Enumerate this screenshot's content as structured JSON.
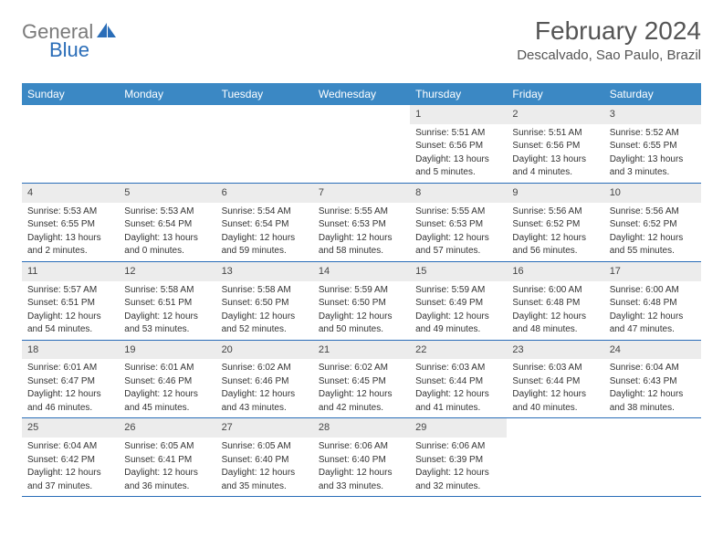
{
  "logo": {
    "part1": "General",
    "part2": "Blue"
  },
  "title": "February 2024",
  "location": "Descalvado, Sao Paulo, Brazil",
  "colors": {
    "header_bg": "#3b88c4",
    "rule": "#2a6db8",
    "daynum_bg": "#ececec",
    "text": "#333333",
    "logo_gray": "#7a7a7a",
    "logo_blue": "#2a6db8"
  },
  "typography": {
    "title_fontsize": 28,
    "location_fontsize": 15,
    "dayheader_fontsize": 12,
    "daynum_fontsize": 11,
    "cell_fontsize": 10
  },
  "day_headers": [
    "Sunday",
    "Monday",
    "Tuesday",
    "Wednesday",
    "Thursday",
    "Friday",
    "Saturday"
  ],
  "weeks": [
    [
      null,
      null,
      null,
      null,
      {
        "n": "1",
        "sunrise": "Sunrise: 5:51 AM",
        "sunset": "Sunset: 6:56 PM",
        "day1": "Daylight: 13 hours",
        "day2": "and 5 minutes."
      },
      {
        "n": "2",
        "sunrise": "Sunrise: 5:51 AM",
        "sunset": "Sunset: 6:56 PM",
        "day1": "Daylight: 13 hours",
        "day2": "and 4 minutes."
      },
      {
        "n": "3",
        "sunrise": "Sunrise: 5:52 AM",
        "sunset": "Sunset: 6:55 PM",
        "day1": "Daylight: 13 hours",
        "day2": "and 3 minutes."
      }
    ],
    [
      {
        "n": "4",
        "sunrise": "Sunrise: 5:53 AM",
        "sunset": "Sunset: 6:55 PM",
        "day1": "Daylight: 13 hours",
        "day2": "and 2 minutes."
      },
      {
        "n": "5",
        "sunrise": "Sunrise: 5:53 AM",
        "sunset": "Sunset: 6:54 PM",
        "day1": "Daylight: 13 hours",
        "day2": "and 0 minutes."
      },
      {
        "n": "6",
        "sunrise": "Sunrise: 5:54 AM",
        "sunset": "Sunset: 6:54 PM",
        "day1": "Daylight: 12 hours",
        "day2": "and 59 minutes."
      },
      {
        "n": "7",
        "sunrise": "Sunrise: 5:55 AM",
        "sunset": "Sunset: 6:53 PM",
        "day1": "Daylight: 12 hours",
        "day2": "and 58 minutes."
      },
      {
        "n": "8",
        "sunrise": "Sunrise: 5:55 AM",
        "sunset": "Sunset: 6:53 PM",
        "day1": "Daylight: 12 hours",
        "day2": "and 57 minutes."
      },
      {
        "n": "9",
        "sunrise": "Sunrise: 5:56 AM",
        "sunset": "Sunset: 6:52 PM",
        "day1": "Daylight: 12 hours",
        "day2": "and 56 minutes."
      },
      {
        "n": "10",
        "sunrise": "Sunrise: 5:56 AM",
        "sunset": "Sunset: 6:52 PM",
        "day1": "Daylight: 12 hours",
        "day2": "and 55 minutes."
      }
    ],
    [
      {
        "n": "11",
        "sunrise": "Sunrise: 5:57 AM",
        "sunset": "Sunset: 6:51 PM",
        "day1": "Daylight: 12 hours",
        "day2": "and 54 minutes."
      },
      {
        "n": "12",
        "sunrise": "Sunrise: 5:58 AM",
        "sunset": "Sunset: 6:51 PM",
        "day1": "Daylight: 12 hours",
        "day2": "and 53 minutes."
      },
      {
        "n": "13",
        "sunrise": "Sunrise: 5:58 AM",
        "sunset": "Sunset: 6:50 PM",
        "day1": "Daylight: 12 hours",
        "day2": "and 52 minutes."
      },
      {
        "n": "14",
        "sunrise": "Sunrise: 5:59 AM",
        "sunset": "Sunset: 6:50 PM",
        "day1": "Daylight: 12 hours",
        "day2": "and 50 minutes."
      },
      {
        "n": "15",
        "sunrise": "Sunrise: 5:59 AM",
        "sunset": "Sunset: 6:49 PM",
        "day1": "Daylight: 12 hours",
        "day2": "and 49 minutes."
      },
      {
        "n": "16",
        "sunrise": "Sunrise: 6:00 AM",
        "sunset": "Sunset: 6:48 PM",
        "day1": "Daylight: 12 hours",
        "day2": "and 48 minutes."
      },
      {
        "n": "17",
        "sunrise": "Sunrise: 6:00 AM",
        "sunset": "Sunset: 6:48 PM",
        "day1": "Daylight: 12 hours",
        "day2": "and 47 minutes."
      }
    ],
    [
      {
        "n": "18",
        "sunrise": "Sunrise: 6:01 AM",
        "sunset": "Sunset: 6:47 PM",
        "day1": "Daylight: 12 hours",
        "day2": "and 46 minutes."
      },
      {
        "n": "19",
        "sunrise": "Sunrise: 6:01 AM",
        "sunset": "Sunset: 6:46 PM",
        "day1": "Daylight: 12 hours",
        "day2": "and 45 minutes."
      },
      {
        "n": "20",
        "sunrise": "Sunrise: 6:02 AM",
        "sunset": "Sunset: 6:46 PM",
        "day1": "Daylight: 12 hours",
        "day2": "and 43 minutes."
      },
      {
        "n": "21",
        "sunrise": "Sunrise: 6:02 AM",
        "sunset": "Sunset: 6:45 PM",
        "day1": "Daylight: 12 hours",
        "day2": "and 42 minutes."
      },
      {
        "n": "22",
        "sunrise": "Sunrise: 6:03 AM",
        "sunset": "Sunset: 6:44 PM",
        "day1": "Daylight: 12 hours",
        "day2": "and 41 minutes."
      },
      {
        "n": "23",
        "sunrise": "Sunrise: 6:03 AM",
        "sunset": "Sunset: 6:44 PM",
        "day1": "Daylight: 12 hours",
        "day2": "and 40 minutes."
      },
      {
        "n": "24",
        "sunrise": "Sunrise: 6:04 AM",
        "sunset": "Sunset: 6:43 PM",
        "day1": "Daylight: 12 hours",
        "day2": "and 38 minutes."
      }
    ],
    [
      {
        "n": "25",
        "sunrise": "Sunrise: 6:04 AM",
        "sunset": "Sunset: 6:42 PM",
        "day1": "Daylight: 12 hours",
        "day2": "and 37 minutes."
      },
      {
        "n": "26",
        "sunrise": "Sunrise: 6:05 AM",
        "sunset": "Sunset: 6:41 PM",
        "day1": "Daylight: 12 hours",
        "day2": "and 36 minutes."
      },
      {
        "n": "27",
        "sunrise": "Sunrise: 6:05 AM",
        "sunset": "Sunset: 6:40 PM",
        "day1": "Daylight: 12 hours",
        "day2": "and 35 minutes."
      },
      {
        "n": "28",
        "sunrise": "Sunrise: 6:06 AM",
        "sunset": "Sunset: 6:40 PM",
        "day1": "Daylight: 12 hours",
        "day2": "and 33 minutes."
      },
      {
        "n": "29",
        "sunrise": "Sunrise: 6:06 AM",
        "sunset": "Sunset: 6:39 PM",
        "day1": "Daylight: 12 hours",
        "day2": "and 32 minutes."
      },
      null,
      null
    ]
  ]
}
